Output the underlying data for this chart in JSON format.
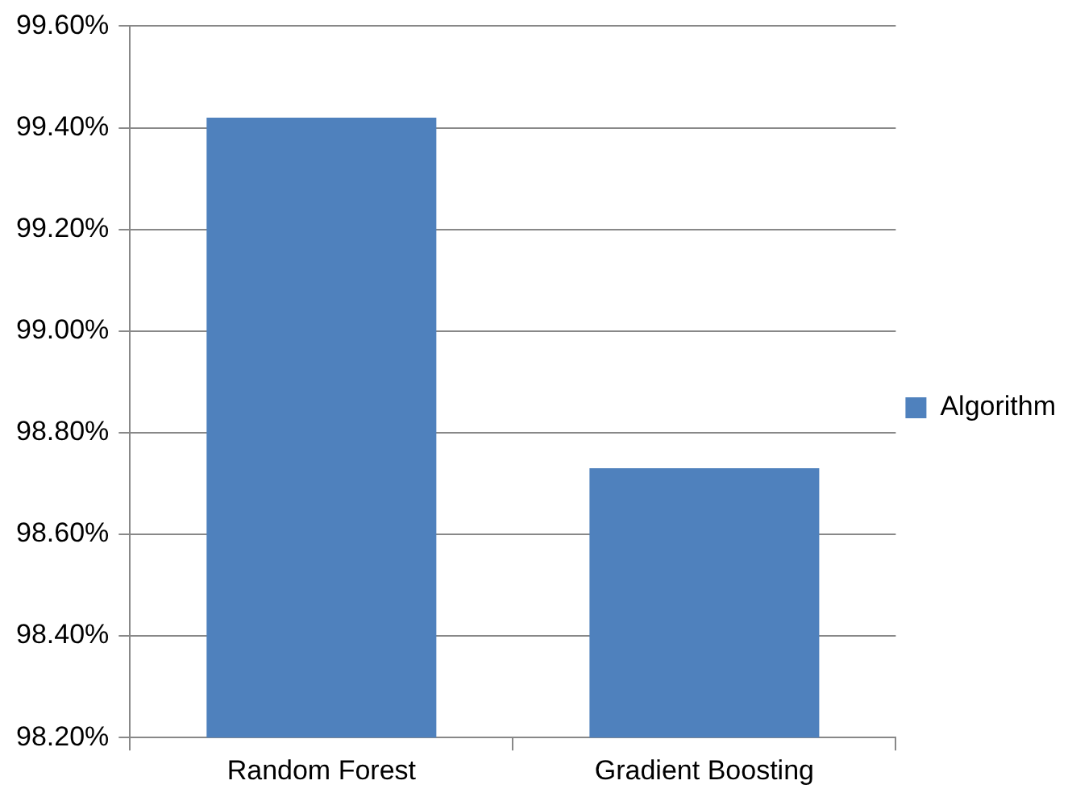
{
  "chart_data": {
    "type": "bar",
    "categories": [
      "Random Forest",
      "Gradient Boosting"
    ],
    "series": [
      {
        "name": "Algorithm",
        "color": "#4f81bd",
        "values": [
          99.42,
          98.73
        ]
      }
    ],
    "ylim": [
      98.2,
      99.6
    ],
    "yticks": [
      {
        "value": 98.2,
        "label": "98.20%"
      },
      {
        "value": 98.4,
        "label": "98.40%"
      },
      {
        "value": 98.6,
        "label": "98.60%"
      },
      {
        "value": 98.8,
        "label": "98.80%"
      },
      {
        "value": 99.0,
        "label": "99.00%"
      },
      {
        "value": 99.2,
        "label": "99.20%"
      },
      {
        "value": 99.4,
        "label": "99.40%"
      },
      {
        "value": 99.6,
        "label": "99.60%"
      }
    ],
    "grid": "y",
    "legend": "right"
  }
}
